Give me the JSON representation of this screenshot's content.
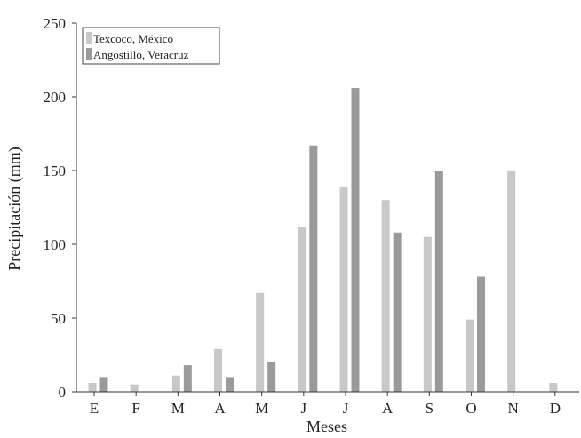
{
  "chart_data": {
    "type": "bar",
    "categories": [
      "E",
      "F",
      "M",
      "A",
      "M",
      "J",
      "J",
      "A",
      "S",
      "O",
      "N",
      "D"
    ],
    "series": [
      {
        "name": "Texcoco, México",
        "values": [
          6,
          5,
          11,
          29,
          67,
          112,
          139,
          130,
          105,
          49,
          150,
          6
        ],
        "color": "#c8c8c8"
      },
      {
        "name": "Angostillo, Veracruz",
        "values": [
          10,
          null,
          18,
          10,
          20,
          167,
          206,
          108,
          150,
          78,
          null,
          null
        ],
        "color": "#9a9a9a"
      }
    ],
    "xlabel": "Meses",
    "ylabel": "Precipitación (mm)",
    "ylim": [
      0,
      250
    ],
    "yticks": [
      0,
      50,
      100,
      150,
      200,
      250
    ],
    "grid": false,
    "legend_position": "top-left"
  }
}
